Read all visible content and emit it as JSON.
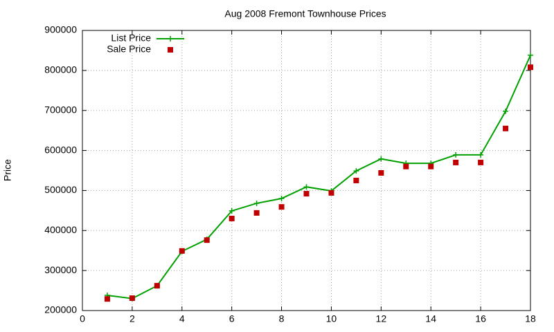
{
  "chart_data": {
    "type": "line",
    "title": "Aug 2008 Fremont Townhouse Prices",
    "y_label": "Price",
    "x": [
      1,
      2,
      3,
      4,
      5,
      6,
      7,
      8,
      9,
      10,
      11,
      12,
      13,
      14,
      15,
      16,
      17,
      18
    ],
    "series": [
      {
        "name": "List Price",
        "color": "#00a000",
        "style": "linespoints",
        "values": [
          238000,
          230000,
          262000,
          348000,
          378000,
          449000,
          468000,
          480000,
          509000,
          499000,
          549000,
          579000,
          568000,
          568000,
          589000,
          589000,
          698000,
          838000
        ]
      },
      {
        "name": "Sale Price",
        "color": "#c00000",
        "style": "points",
        "values": [
          229000,
          231000,
          262000,
          349000,
          376000,
          430000,
          444000,
          459000,
          492000,
          494000,
          525000,
          544000,
          560000,
          560000,
          570000,
          570000,
          655000,
          808000
        ]
      }
    ],
    "xlim": [
      0,
      18
    ],
    "xticks": [
      0,
      2,
      4,
      6,
      8,
      10,
      12,
      14,
      16,
      18
    ],
    "ylim": [
      200000,
      900000
    ],
    "yticks": [
      200000,
      300000,
      400000,
      500000,
      600000,
      700000,
      800000,
      900000
    ],
    "grid": true,
    "legend": "top-left"
  }
}
